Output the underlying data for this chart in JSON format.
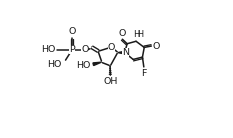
{
  "background_color": "#ffffff",
  "line_color": "#1a1a1a",
  "line_width": 1.1,
  "font_size": 6.8,
  "fig_width": 2.33,
  "fig_height": 1.38,
  "dpi": 100,
  "xlim": [
    0,
    1
  ],
  "ylim": [
    0,
    1
  ]
}
